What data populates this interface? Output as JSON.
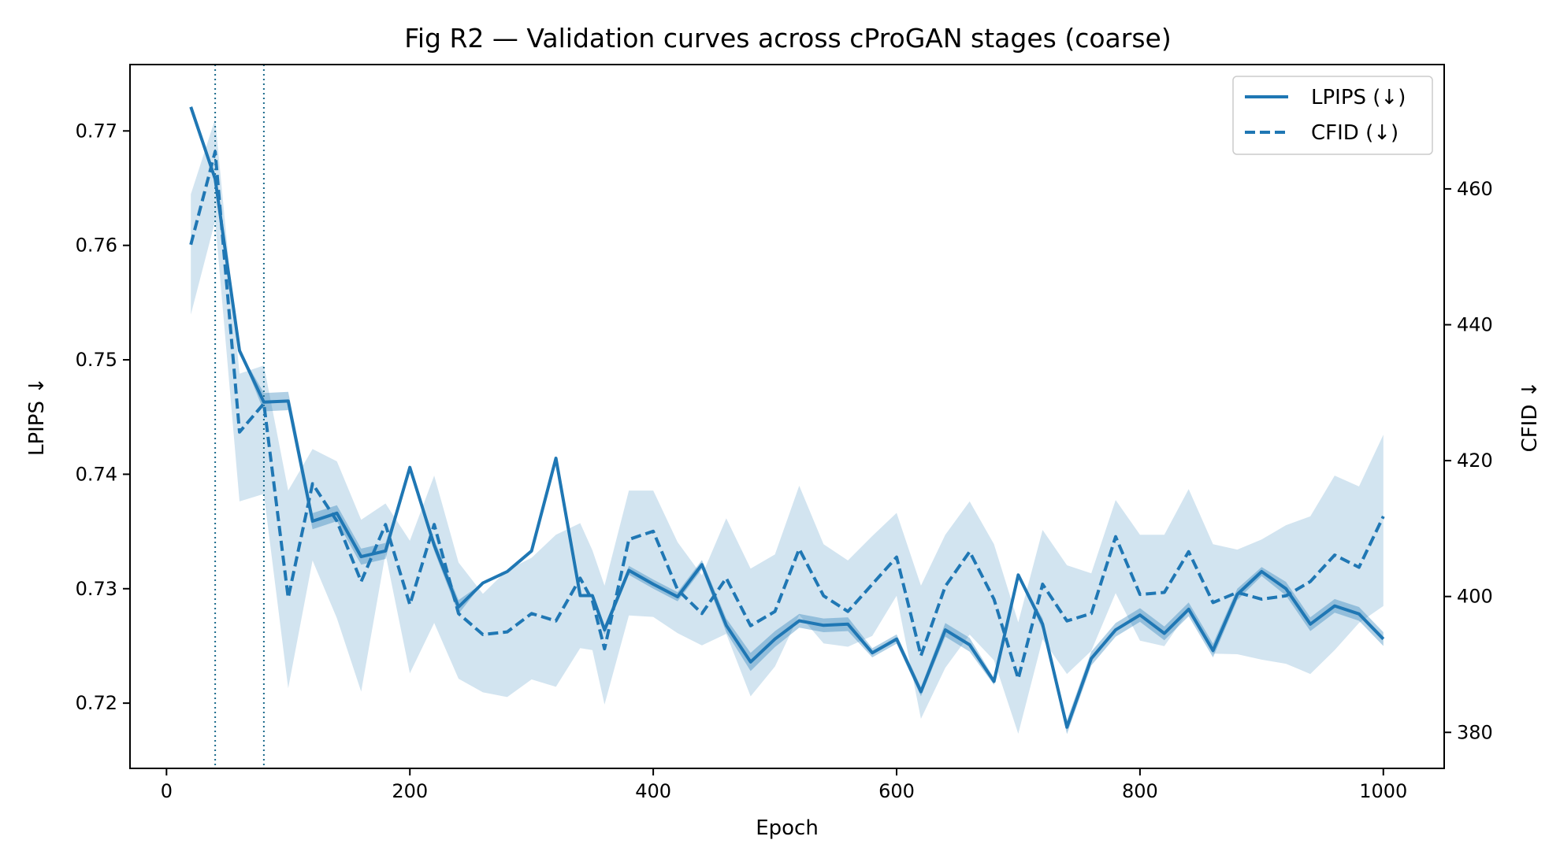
{
  "chart_data": {
    "type": "line",
    "title": "Fig R2 — Validation curves across cProGAN stages (coarse)",
    "xlabel": "Epoch",
    "ylabel_left": "LPIPS ↓",
    "ylabel_right": "CFID ↓",
    "xlim": [
      -30,
      1050
    ],
    "ylim_left": [
      0.7143,
      0.7758
    ],
    "ylim_right": [
      374.7,
      478.3
    ],
    "x_ticks": [
      "0",
      "200",
      "400",
      "600",
      "800",
      "1000"
    ],
    "x_tick_values": [
      0,
      200,
      400,
      600,
      800,
      1000
    ],
    "y_left_ticks": [
      "0.72",
      "0.73",
      "0.74",
      "0.75",
      "0.76",
      "0.77"
    ],
    "y_left_tick_values": [
      0.72,
      0.73,
      0.74,
      0.75,
      0.76,
      0.77
    ],
    "y_right_ticks": [
      "380",
      "400",
      "420",
      "440",
      "460"
    ],
    "y_right_tick_values": [
      380,
      400,
      420,
      440,
      460
    ],
    "stage_markers": [
      40,
      80
    ],
    "legend_position": "top-right",
    "grid": false,
    "x": [
      20,
      40,
      60,
      80,
      100,
      120,
      140,
      160,
      180,
      200,
      220,
      240,
      260,
      280,
      300,
      320,
      340,
      350,
      360,
      380,
      400,
      420,
      440,
      460,
      480,
      500,
      520,
      540,
      560,
      580,
      600,
      620,
      640,
      660,
      680,
      700,
      720,
      740,
      760,
      780,
      800,
      820,
      840,
      860,
      880,
      900,
      920,
      940,
      960,
      980,
      1000
    ],
    "series": [
      {
        "name": "LPIPS (↓)",
        "axis": "left",
        "style": "solid",
        "color": "#1f77b4",
        "values": [
          0.7721,
          0.7658,
          0.7508,
          0.7463,
          0.7464,
          0.7359,
          0.7366,
          0.7328,
          0.7333,
          0.7406,
          0.7338,
          0.7284,
          0.7305,
          0.7315,
          0.7333,
          0.7414,
          0.7294,
          0.7294,
          0.7264,
          0.7316,
          0.7304,
          0.7293,
          0.7321,
          0.7268,
          0.7236,
          0.7256,
          0.7272,
          0.7268,
          0.7269,
          0.7244,
          0.7256,
          0.721,
          0.7264,
          0.7251,
          0.7219,
          0.7312,
          0.7269,
          0.7179,
          0.7239,
          0.7264,
          0.7277,
          0.7261,
          0.7282,
          0.7246,
          0.7295,
          0.7315,
          0.73,
          0.7269,
          0.7285,
          0.7278,
          0.7256
        ],
        "band_lower": [
          0.7721,
          0.7658,
          0.7508,
          0.7455,
          0.7456,
          0.7352,
          0.7359,
          0.7321,
          0.7326,
          0.7406,
          0.7333,
          0.7278,
          0.7305,
          0.7315,
          0.7333,
          0.7414,
          0.7294,
          0.7294,
          0.726,
          0.7312,
          0.73,
          0.7289,
          0.7317,
          0.7262,
          0.7228,
          0.7249,
          0.7266,
          0.7262,
          0.7263,
          0.724,
          0.7252,
          0.7206,
          0.7258,
          0.7245,
          0.7216,
          0.7312,
          0.7264,
          0.7173,
          0.7233,
          0.7258,
          0.7271,
          0.7255,
          0.7276,
          0.724,
          0.729,
          0.7311,
          0.7294,
          0.7263,
          0.7279,
          0.7272,
          0.725
        ],
        "band_upper": [
          0.7721,
          0.7658,
          0.7508,
          0.7471,
          0.7472,
          0.7366,
          0.7373,
          0.7335,
          0.734,
          0.7406,
          0.7343,
          0.729,
          0.7305,
          0.7315,
          0.7333,
          0.7414,
          0.7294,
          0.7294,
          0.7268,
          0.732,
          0.7308,
          0.7297,
          0.7325,
          0.7274,
          0.7244,
          0.7263,
          0.7278,
          0.7274,
          0.7275,
          0.7248,
          0.726,
          0.7214,
          0.727,
          0.7257,
          0.7222,
          0.7312,
          0.7274,
          0.7185,
          0.7245,
          0.727,
          0.7283,
          0.7267,
          0.7288,
          0.7252,
          0.73,
          0.7319,
          0.7306,
          0.7275,
          0.7291,
          0.7284,
          0.7262
        ]
      },
      {
        "name": "CFID (↓)",
        "axis": "right",
        "style": "dashed",
        "color": "#1f77b4",
        "values": [
          451.8,
          465.5,
          424.2,
          428.4,
          399.8,
          416.6,
          411.1,
          402.2,
          410.6,
          398.8,
          410.6,
          397.5,
          394.4,
          394.8,
          397.5,
          396.4,
          402.7,
          399.4,
          392.3,
          408.4,
          409.6,
          401.0,
          397.5,
          402.7,
          395.7,
          397.8,
          407.0,
          400.1,
          397.8,
          401.8,
          405.8,
          391.3,
          401.5,
          406.6,
          399.6,
          387.9,
          401.8,
          396.4,
          397.5,
          408.8,
          400.3,
          400.6,
          406.6,
          399.1,
          400.6,
          399.6,
          400.1,
          402.2,
          406.1,
          404.3,
          411.8
        ],
        "band_lower": [
          441.5,
          455.3,
          414.0,
          415.1,
          386.5,
          405.3,
          396.8,
          386.0,
          406.3,
          388.7,
          396.1,
          387.9,
          385.9,
          385.2,
          387.8,
          386.7,
          392.4,
          392.1,
          384.1,
          397.2,
          397.0,
          394.6,
          392.8,
          394.5,
          385.3,
          389.7,
          397.3,
          393.1,
          392.6,
          394.2,
          400.1,
          382.0,
          389.5,
          394.4,
          390.6,
          379.8,
          393.7,
          388.6,
          392.0,
          400.5,
          393.5,
          392.7,
          397.9,
          391.6,
          391.5,
          390.7,
          390.1,
          388.6,
          392.1,
          396.1,
          398.6
        ],
        "band_upper": [
          459.2,
          470.3,
          432.8,
          434.0,
          415.6,
          421.7,
          419.9,
          411.3,
          413.7,
          408.2,
          417.8,
          405.0,
          400.4,
          403.9,
          405.7,
          409.1,
          410.8,
          406.8,
          401.6,
          415.6,
          415.6,
          408.0,
          403.1,
          411.5,
          404.1,
          406.2,
          416.3,
          407.7,
          405.3,
          408.9,
          412.3,
          401.6,
          409.1,
          414.0,
          407.7,
          396.2,
          409.8,
          404.6,
          403.4,
          414.2,
          409.1,
          409.1,
          415.8,
          407.7,
          406.9,
          408.4,
          410.5,
          411.8,
          417.8,
          416.2,
          423.8
        ]
      }
    ]
  }
}
